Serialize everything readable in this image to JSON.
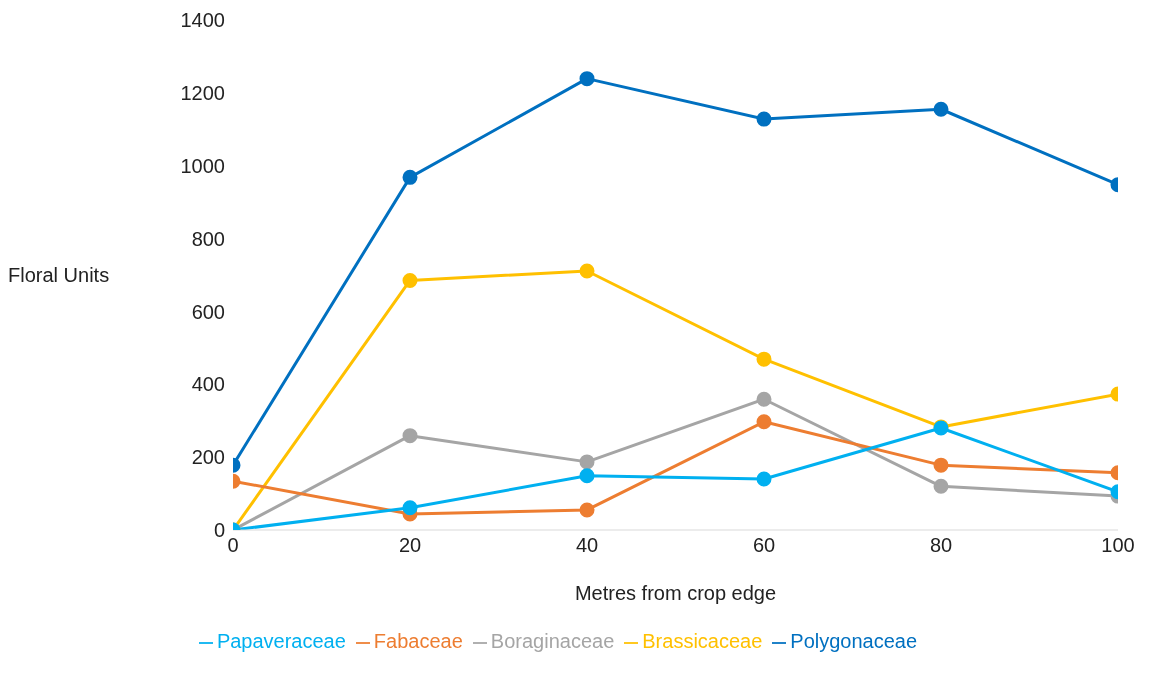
{
  "chart_data": {
    "type": "line",
    "xlabel": "Metres from crop edge",
    "ylabel": "Floral Units",
    "x": [
      0,
      20,
      40,
      60,
      80,
      100
    ],
    "xlim": [
      0,
      100
    ],
    "xticks": [
      0,
      20,
      40,
      60,
      80,
      100
    ],
    "ylim": [
      0,
      1400
    ],
    "yticks": [
      0,
      200,
      400,
      600,
      800,
      1000,
      1200,
      1400
    ],
    "grid": false,
    "legend": "bottom",
    "marker": "circle",
    "line_style": "solid",
    "series": [
      {
        "name": "Papaveraceae",
        "color": "#00b0f0",
        "values": [
          0,
          61,
          149,
          140,
          280,
          105
        ]
      },
      {
        "name": "Fabaceae",
        "color": "#ed7d31",
        "values": [
          134,
          44,
          55,
          297,
          178,
          157
        ]
      },
      {
        "name": "Boraginaceae",
        "color": "#a5a5a5",
        "values": [
          0,
          259,
          187,
          359,
          120,
          93
        ]
      },
      {
        "name": "Brassicaceae",
        "color": "#ffc000",
        "values": [
          0,
          685,
          711,
          469,
          283,
          373
        ]
      },
      {
        "name": "Polygonaceae",
        "color": "#0070c0",
        "values": [
          178,
          968,
          1239,
          1128,
          1155,
          948
        ]
      }
    ]
  }
}
